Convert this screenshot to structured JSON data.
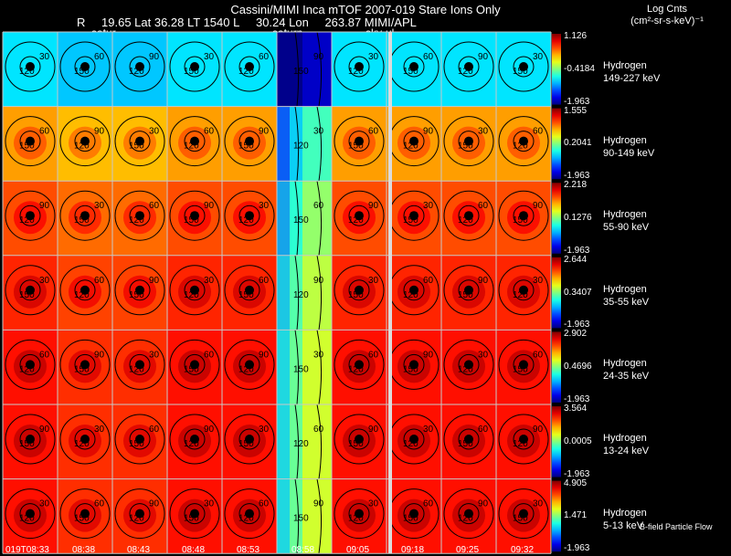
{
  "header": {
    "title": "Cassini/MIMI Inca mTOF  2007-019   Stare    Ions Only",
    "line2": [
      "R",
      "19.65 Lat 36.28 LT 1540 L",
      "30.24 Lon",
      "263.87  MIMI/APL"
    ],
    "colorbar_title": "Log Cnts",
    "colorbar_units": "(cm²-sr-s-keV)⁻¹"
  },
  "markers": [
    "satur",
    "saturn",
    "sky-ul"
  ],
  "footer": "B-field Particle Flow",
  "colors": {
    "bg": "#000000",
    "grid": "#c8c8c8",
    "contour": "#000000"
  },
  "chart_data": {
    "type": "heatmap",
    "title": "Cassini/MIMI Inca mTOF 2007-019 Stare Ions Only",
    "x_tick_labels": [
      "019T08:33",
      "08:38",
      "08:43",
      "08:48",
      "08:53",
      "08:58",
      "09:05",
      "09:18",
      "09:25",
      "09:32"
    ],
    "contour_labels": [
      "30",
      "60",
      "90",
      "120",
      "150"
    ],
    "channels": [
      {
        "species": "Hydrogen",
        "energy": "149-227 keV",
        "max": "1.126",
        "mid": "-0.4184",
        "min": "-1.963"
      },
      {
        "species": "Hydrogen",
        "energy": "90-149 keV",
        "max": "1.555",
        "mid": "0.2041",
        "min": "-1.963"
      },
      {
        "species": "Hydrogen",
        "energy": "55-90 keV",
        "max": "2.218",
        "mid": "0.1276",
        "min": "-1.963"
      },
      {
        "species": "Hydrogen",
        "energy": "35-55 keV",
        "max": "2.644",
        "mid": "0.3407",
        "min": "-1.963"
      },
      {
        "species": "Hydrogen",
        "energy": "24-35 keV",
        "max": "2.902",
        "mid": "0.4696",
        "min": "-1.963"
      },
      {
        "species": "Hydrogen",
        "energy": "13-24 keV",
        "max": "3.564",
        "mid": "0.0005",
        "min": "-1.963"
      },
      {
        "species": "Hydrogen",
        "energy": "5-13 keV",
        "max": "4.905",
        "mid": "1.471",
        "min": "-1.963"
      }
    ],
    "row_intensity": [
      0.35,
      0.72,
      0.8,
      0.84,
      0.86,
      0.86,
      0.86
    ]
  }
}
